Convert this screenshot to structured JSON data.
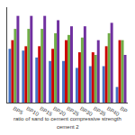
{
  "chart_data": {
    "type": "bar",
    "categories": [
      "BP5",
      "BP10",
      "BP15",
      "BP20",
      "BP25",
      "BP30",
      "BP35",
      "BP40",
      "BP"
    ],
    "series": [
      {
        "color": "#4472C4",
        "values": [
          62,
          60,
          52,
          48,
          48,
          40,
          42,
          42,
          18
        ]
      },
      {
        "color": "#CC0000",
        "values": [
          72,
          65,
          65,
          62,
          72,
          58,
          58,
          65,
          72
        ]
      },
      {
        "color": "#70AD47",
        "values": [
          85,
          85,
          85,
          80,
          78,
          75,
          55,
          80,
          72
        ]
      },
      {
        "color": "#7030A0",
        "values": [
          100,
          100,
          100,
          95,
          88,
          88,
          72,
          92,
          55
        ]
      }
    ],
    "ylim": [
      0,
      110
    ],
    "yticks": [],
    "grid": false,
    "tick_labels": "x",
    "annotations": [
      "ratio of sand to cement compressive strength",
      "cement 2"
    ]
  }
}
